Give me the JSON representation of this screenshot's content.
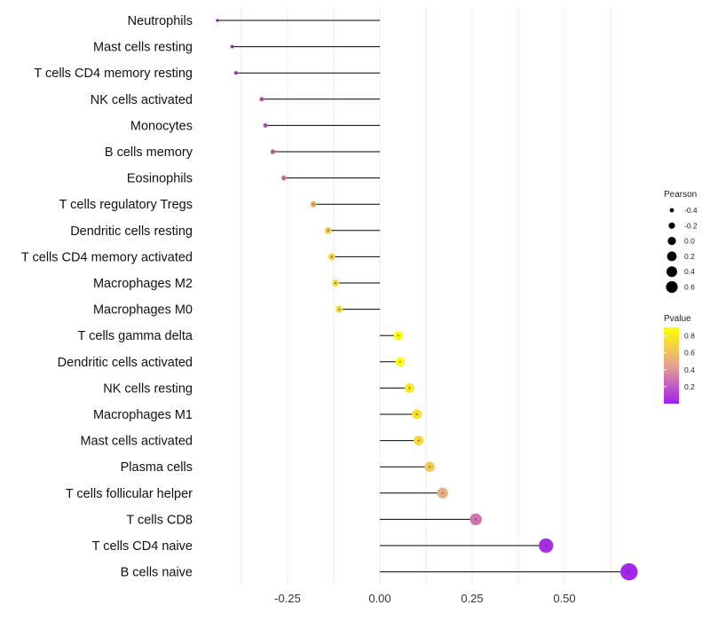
{
  "chart_data": {
    "type": "lollipop",
    "x_axis": {
      "ticks": [
        -0.25,
        0.0,
        0.25,
        0.5
      ],
      "tick_labels": [
        "-0.25",
        "0.00",
        "0.25",
        "0.50"
      ],
      "xlim": [
        -0.375,
        0.7
      ],
      "baseline": 0.0,
      "grid": true
    },
    "categories": [
      "Neutrophils",
      "Mast cells resting",
      "T cells CD4 memory resting",
      "NK cells activated",
      "Monocytes",
      "B cells memory",
      "Eosinophils",
      "T cells regulatory  Tregs ",
      "Dendritic cells resting",
      "T cells CD4 memory activated",
      "Macrophages M2",
      "Macrophages M0",
      "T cells gamma delta",
      "Dendritic cells activated",
      "NK cells resting",
      "Macrophages M1",
      "Mast cells activated",
      "Plasma cells",
      "T cells follicular helper",
      "T cells CD8",
      "T cells CD4 naive",
      "B cells naive"
    ],
    "pearson": [
      -0.44,
      -0.4,
      -0.39,
      -0.32,
      -0.31,
      -0.29,
      -0.26,
      -0.18,
      -0.14,
      -0.13,
      -0.12,
      -0.11,
      0.05,
      0.055,
      0.08,
      0.1,
      0.105,
      0.135,
      0.17,
      0.26,
      0.45,
      0.675
    ],
    "pvalue": [
      0.01,
      0.08,
      0.1,
      0.2,
      0.22,
      0.25,
      0.33,
      0.55,
      0.65,
      0.68,
      0.72,
      0.74,
      0.95,
      0.93,
      0.78,
      0.75,
      0.7,
      0.65,
      0.5,
      0.3,
      0.05,
      0.02
    ],
    "legend_size": {
      "title": "Pearson",
      "values": [
        -0.4,
        -0.2,
        0.0,
        0.2,
        0.4,
        0.6
      ],
      "labels": [
        "-0.4",
        "-0.2",
        "0.0",
        "0.2",
        "0.4",
        "0.6"
      ]
    },
    "legend_color": {
      "title": "Pvalue",
      "labels": [
        "0.8",
        "0.6",
        "0.4",
        "0.2"
      ],
      "values": [
        0.8,
        0.6,
        0.4,
        0.2
      ],
      "range": [
        0.0,
        0.9
      ],
      "low_color": "#a020f0",
      "high_color": "#ffff00"
    }
  }
}
